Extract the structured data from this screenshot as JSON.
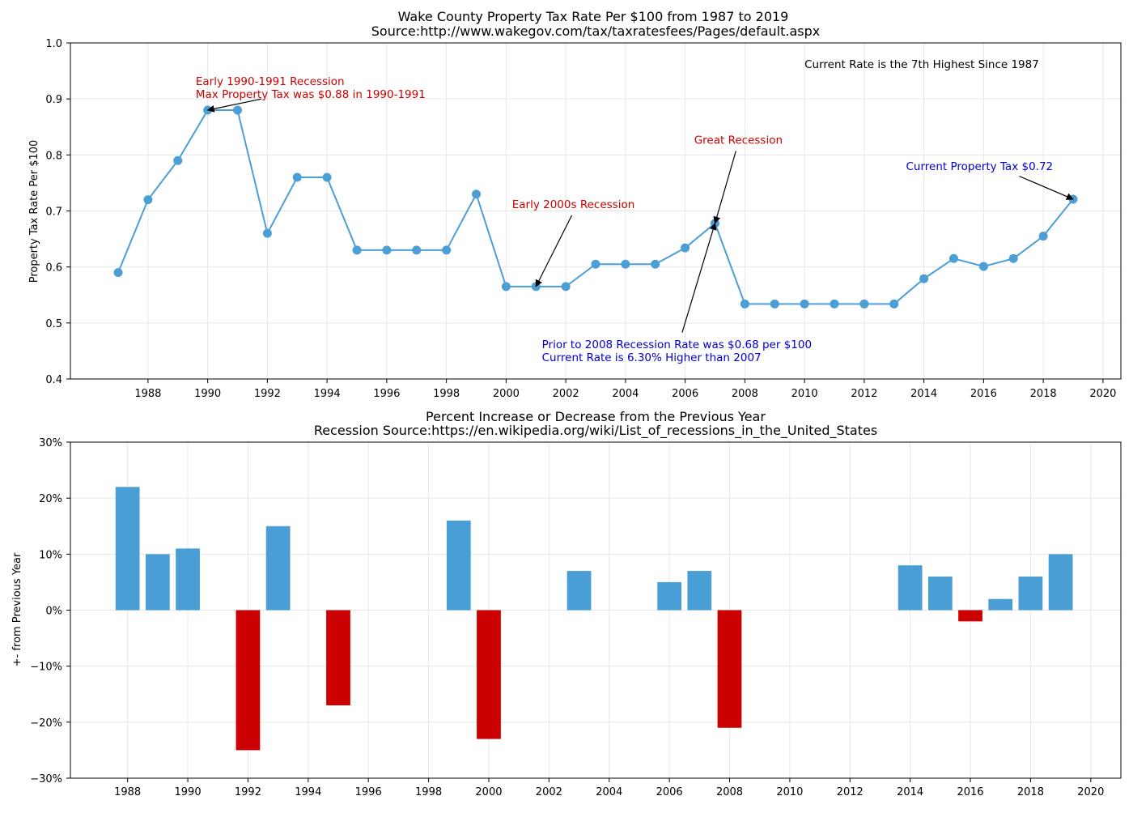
{
  "chart_data": [
    {
      "type": "line",
      "title": "Wake County Property Tax Rate Per $100 from 1987 to 2019",
      "subtitle": "Source:http://www.wakegov.com/tax/taxratesfees/Pages/default.aspx",
      "xlabel": "",
      "ylabel": "Property Tax Rate Per $100",
      "xlim": [
        1985.4,
        2020.6
      ],
      "ylim": [
        0.4,
        1.0
      ],
      "grid": true,
      "line_color": "#4b9fd5",
      "x_ticks": [
        "1988",
        "1990",
        "1992",
        "1994",
        "1996",
        "1998",
        "2000",
        "2002",
        "2004",
        "2006",
        "2008",
        "2010",
        "2012",
        "2014",
        "2016",
        "2018",
        "2020"
      ],
      "y_ticks": [
        "0.4",
        "0.5",
        "0.6",
        "0.7",
        "0.8",
        "0.9",
        "1.0"
      ],
      "x": [
        1987,
        1988,
        1989,
        1990,
        1991,
        1992,
        1993,
        1994,
        1995,
        1996,
        1997,
        1998,
        1999,
        2000,
        2001,
        2002,
        2003,
        2004,
        2005,
        2006,
        2007,
        2008,
        2009,
        2010,
        2011,
        2012,
        2013,
        2014,
        2015,
        2016,
        2017,
        2018,
        2019
      ],
      "y": [
        0.59,
        0.72,
        0.79,
        0.88,
        0.88,
        0.66,
        0.76,
        0.76,
        0.63,
        0.63,
        0.63,
        0.63,
        0.73,
        0.565,
        0.565,
        0.565,
        0.605,
        0.605,
        0.605,
        0.634,
        0.678,
        0.534,
        0.534,
        0.534,
        0.534,
        0.534,
        0.534,
        0.579,
        0.615,
        0.601,
        0.615,
        0.655,
        0.721
      ],
      "annotations": [
        {
          "lines": [
            "Early 1990-1991 Recession",
            "Max Property Tax was $0.88 in 1990-1991"
          ],
          "color": "#cc0000",
          "text_x": 1989.6,
          "text_y": 0.925,
          "arrow_to": [
            1990,
            0.88
          ],
          "arrow_from": [
            1991.8,
            0.9
          ]
        },
        {
          "lines": [
            "Early 2000s Recession"
          ],
          "color": "#cc0000",
          "text_x": 2000.2,
          "text_y": 0.705,
          "arrow_to": [
            2001,
            0.565
          ],
          "arrow_from": [
            2002.2,
            0.692
          ]
        },
        {
          "lines": [
            "Great Recession"
          ],
          "color": "#cc0000",
          "text_x": 2006.3,
          "text_y": 0.82,
          "arrow_to": [
            2007,
            0.678
          ],
          "arrow_from": [
            2007.7,
            0.807
          ]
        },
        {
          "lines": [
            "Prior to 2008 Recession Rate was $0.68 per $100",
            "Current Rate is 6.30% Higher than 2007"
          ],
          "color": "#0000cc",
          "text_x": 2001.2,
          "text_y": 0.455,
          "arrow_to": [
            2007,
            0.678
          ],
          "arrow_from": [
            2005.9,
            0.483
          ]
        },
        {
          "lines": [
            "Current Property Tax $0.72"
          ],
          "color": "#0000cc",
          "text_x": 2013.4,
          "text_y": 0.773,
          "arrow_to": [
            2019,
            0.721
          ],
          "arrow_from": [
            2017.2,
            0.762
          ]
        },
        {
          "lines": [
            "Current Rate is the 7th Highest Since 1987"
          ],
          "color": "#000000",
          "text_x": 2010.0,
          "text_y": 0.955
        }
      ]
    },
    {
      "type": "bar",
      "title": "Percent Increase or Decrease from the Previous Year",
      "subtitle": "Recession Source:https://en.wikipedia.org/wiki/List_of_recessions_in_the_United_States",
      "xlabel": "",
      "ylabel": "+- from Previous Year",
      "xlim": [
        1986.1,
        2021.0
      ],
      "ylim": [
        -30,
        30
      ],
      "grid": true,
      "positive_color": "#4a9ed6",
      "negative_color": "#cc0000",
      "x_ticks": [
        "1988",
        "1990",
        "1992",
        "1994",
        "1996",
        "1998",
        "2000",
        "2002",
        "2004",
        "2006",
        "2008",
        "2010",
        "2012",
        "2014",
        "2016",
        "2018",
        "2020"
      ],
      "y_ticks": [
        "−30%",
        "−20%",
        "−10%",
        "0%",
        "10%",
        "20%",
        "30%"
      ],
      "x": [
        1988,
        1989,
        1990,
        1991,
        1992,
        1993,
        1994,
        1995,
        1996,
        1997,
        1998,
        1999,
        2000,
        2001,
        2002,
        2003,
        2004,
        2005,
        2006,
        2007,
        2008,
        2009,
        2010,
        2011,
        2012,
        2013,
        2014,
        2015,
        2016,
        2017,
        2018,
        2019
      ],
      "values": [
        22,
        10,
        11,
        0,
        -25,
        15,
        0,
        -17,
        0,
        0,
        0,
        16,
        -23,
        0,
        0,
        7,
        0,
        0,
        5,
        7,
        -21,
        0,
        0,
        0,
        0,
        0,
        8,
        6,
        -2,
        2,
        6,
        10
      ]
    }
  ]
}
